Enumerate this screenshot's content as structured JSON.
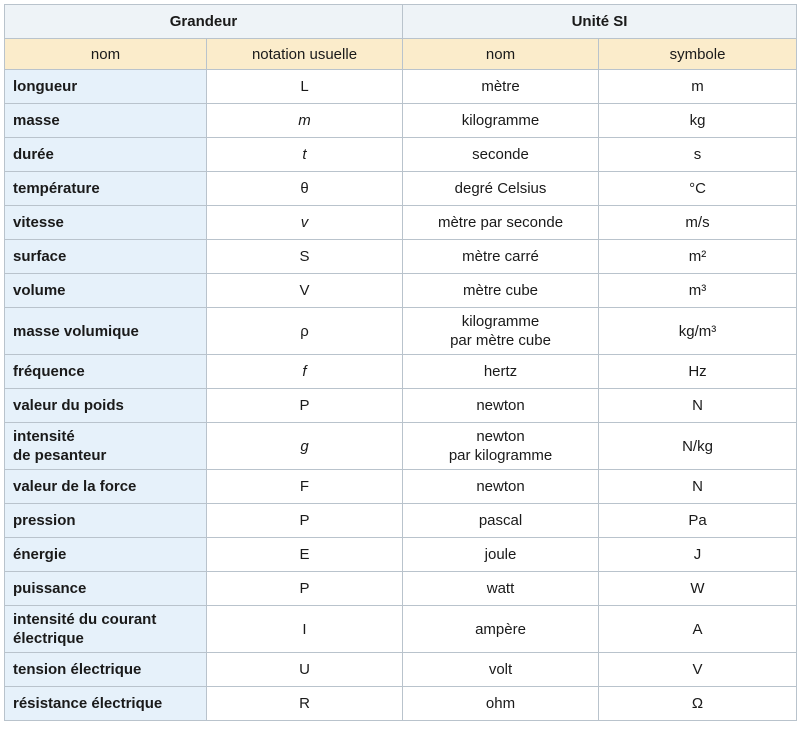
{
  "header": {
    "grandeur": "Grandeur",
    "unite": "Unité SI"
  },
  "subheader": {
    "nom": "nom",
    "notation": "notation usuelle",
    "unit_nom": "nom",
    "symbole": "symbole"
  },
  "rows": [
    {
      "quantity": "longueur",
      "notation": "L",
      "unit": "mètre",
      "symbol": "m"
    },
    {
      "quantity": "masse",
      "notation": "m",
      "unit": "kilogramme",
      "symbol": "kg"
    },
    {
      "quantity": "durée",
      "notation": "t",
      "unit": "seconde",
      "symbol": "s"
    },
    {
      "quantity": "température",
      "notation": "θ",
      "unit": "degré Celsius",
      "symbol": "°C"
    },
    {
      "quantity": "vitesse",
      "notation": "v",
      "unit": "mètre par seconde",
      "symbol": "m/s"
    },
    {
      "quantity": "surface",
      "notation": "S",
      "unit": "mètre carré",
      "symbol": "m²"
    },
    {
      "quantity": "volume",
      "notation": "V",
      "unit": "mètre cube",
      "symbol": "m³"
    },
    {
      "quantity": "masse volumique",
      "notation": "ρ",
      "unit": "kilogramme\npar mètre cube",
      "symbol": "kg/m³"
    },
    {
      "quantity": "fréquence",
      "notation": "f",
      "unit": "hertz",
      "symbol": "Hz"
    },
    {
      "quantity": "valeur du poids",
      "notation": "P",
      "unit": "newton",
      "symbol": "N"
    },
    {
      "quantity": "intensité\nde pesanteur",
      "notation": "g",
      "unit": "newton\npar kilogramme",
      "symbol": "N/kg"
    },
    {
      "quantity": "valeur de la force",
      "notation": "F",
      "unit": "newton",
      "symbol": "N"
    },
    {
      "quantity": "pression",
      "notation": "P",
      "unit": "pascal",
      "symbol": "Pa"
    },
    {
      "quantity": "énergie",
      "notation": "E",
      "unit": "joule",
      "symbol": "J"
    },
    {
      "quantity": "puissance",
      "notation": "P",
      "unit": "watt",
      "symbol": "W"
    },
    {
      "quantity": "intensité du courant\nélectrique",
      "notation": "I",
      "unit": "ampère",
      "symbol": "A"
    },
    {
      "quantity": "tension électrique",
      "notation": "U",
      "unit": "volt",
      "symbol": "V"
    },
    {
      "quantity": "résistance électrique",
      "notation": "R",
      "unit": "ohm",
      "symbol": "Ω"
    }
  ]
}
